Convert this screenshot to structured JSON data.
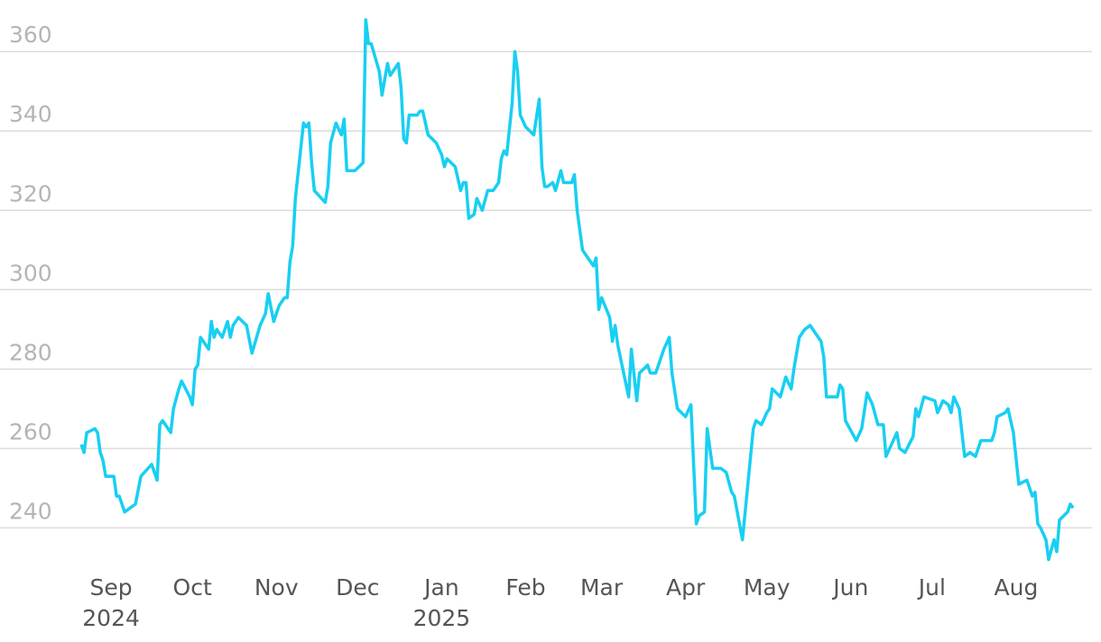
{
  "chart_data": {
    "type": "line",
    "color": "#18cff2",
    "grid": true,
    "x": [
      -11,
      -10,
      -9,
      -6,
      -5,
      -4,
      -3,
      -2,
      1,
      2,
      3,
      5,
      9,
      11,
      15,
      17,
      18,
      19,
      22,
      23,
      25,
      26,
      29,
      30,
      31,
      32,
      33,
      36,
      37,
      38,
      39,
      41,
      43,
      44,
      45,
      47,
      50,
      52,
      55,
      57,
      58,
      60,
      62,
      64,
      65,
      66,
      67,
      68,
      71,
      72,
      73,
      74,
      75,
      79,
      80,
      81,
      83,
      85,
      86,
      87,
      90,
      93,
      94,
      95,
      96,
      99,
      100,
      102,
      103,
      106,
      107,
      108,
      109,
      110,
      113,
      114,
      115,
      117,
      120,
      122,
      123,
      124,
      127,
      129,
      130,
      131,
      132,
      134,
      135,
      137,
      139,
      141,
      143,
      144,
      145,
      146,
      148,
      149,
      150,
      151,
      153,
      156,
      158,
      159,
      160,
      161,
      163,
      164,
      166,
      167,
      170,
      171,
      172,
      174,
      176,
      178,
      179,
      180,
      181,
      184,
      185,
      186,
      187,
      191,
      192,
      194,
      195,
      198,
      199,
      201,
      202,
      204,
      206,
      207,
      209,
      212,
      214,
      216,
      217,
      219,
      220,
      222,
      225,
      227,
      229,
      230,
      233,
      235,
      237,
      238,
      240,
      242,
      243,
      244,
      247,
      249,
      251,
      252,
      254,
      256,
      258,
      261,
      262,
      263,
      264,
      268,
      269,
      270,
      271,
      275,
      277,
      279,
      281,
      283,
      285,
      286,
      290,
      291,
      293,
      296,
      297,
      298,
      300,
      304,
      305,
      307,
      309,
      310,
      311,
      313,
      315,
      317,
      319,
      321,
      325,
      326,
      327,
      330,
      331,
      333,
      335,
      338,
      340,
      341,
      342,
      343,
      345,
      346,
      348,
      349,
      350,
      353,
      354,
      355
    ],
    "values": [
      261,
      259,
      264,
      265,
      264,
      259,
      257,
      253,
      253,
      248,
      248,
      244,
      246,
      253,
      256,
      252,
      266,
      267,
      264,
      270,
      275,
      277,
      273,
      271,
      280,
      281,
      288,
      285,
      292,
      288,
      290,
      288,
      292,
      288,
      291,
      293,
      291,
      284,
      291,
      294,
      299,
      292,
      296,
      298,
      298,
      307,
      311,
      323,
      342,
      341,
      342,
      332,
      325,
      322,
      326,
      337,
      342,
      339,
      343,
      330,
      330,
      332,
      368,
      362,
      362,
      355,
      349,
      357,
      354,
      357,
      351,
      338,
      337,
      344,
      344,
      345,
      345,
      339,
      337,
      334,
      331,
      333,
      331,
      325,
      327,
      327,
      318,
      319,
      323,
      320,
      325,
      325,
      327,
      333,
      335,
      334,
      347,
      360,
      355,
      344,
      341,
      339,
      348,
      331,
      326,
      326,
      327,
      325,
      330,
      327,
      327,
      329,
      320,
      310,
      308,
      306,
      308,
      295,
      298,
      293,
      287,
      291,
      286,
      273,
      285,
      272,
      279,
      281,
      279,
      279,
      281,
      285,
      288,
      279,
      270,
      268,
      271,
      241,
      243,
      244,
      265,
      255,
      255,
      254,
      249,
      248,
      237,
      251,
      265,
      267,
      266,
      269,
      270,
      275,
      273,
      278,
      275,
      280,
      288,
      290,
      291,
      288,
      287,
      283,
      273,
      273,
      276,
      275,
      267,
      262,
      265,
      274,
      271,
      266,
      266,
      258,
      264,
      260,
      259,
      263,
      270,
      268,
      273,
      272,
      269,
      272,
      271,
      269,
      273,
      270,
      258,
      259,
      258,
      262,
      262,
      264,
      268,
      269,
      270,
      264,
      251,
      252,
      248,
      249,
      241,
      240,
      237,
      232,
      237,
      234,
      242,
      244,
      246,
      245
    ],
    "xlim": [
      -41,
      362
    ],
    "xticks": [
      {
        "value": 0,
        "label": "Sep"
      },
      {
        "value": 30,
        "label": "Oct"
      },
      {
        "value": 61,
        "label": "Nov"
      },
      {
        "value": 91,
        "label": "Dec"
      },
      {
        "value": 122,
        "label": "Jan"
      },
      {
        "value": 153,
        "label": "Feb"
      },
      {
        "value": 181,
        "label": "Mar"
      },
      {
        "value": 212,
        "label": "Apr"
      },
      {
        "value": 242,
        "label": "May"
      },
      {
        "value": 273,
        "label": "Jun"
      },
      {
        "value": 303,
        "label": "Jul"
      },
      {
        "value": 334,
        "label": "Aug"
      }
    ],
    "xticks_years": [
      {
        "value": 0,
        "label": "2024"
      },
      {
        "value": 122,
        "label": "2025"
      }
    ],
    "ylim": [
      231,
      373
    ],
    "yticks": [
      240,
      260,
      280,
      300,
      320,
      340,
      360
    ]
  }
}
